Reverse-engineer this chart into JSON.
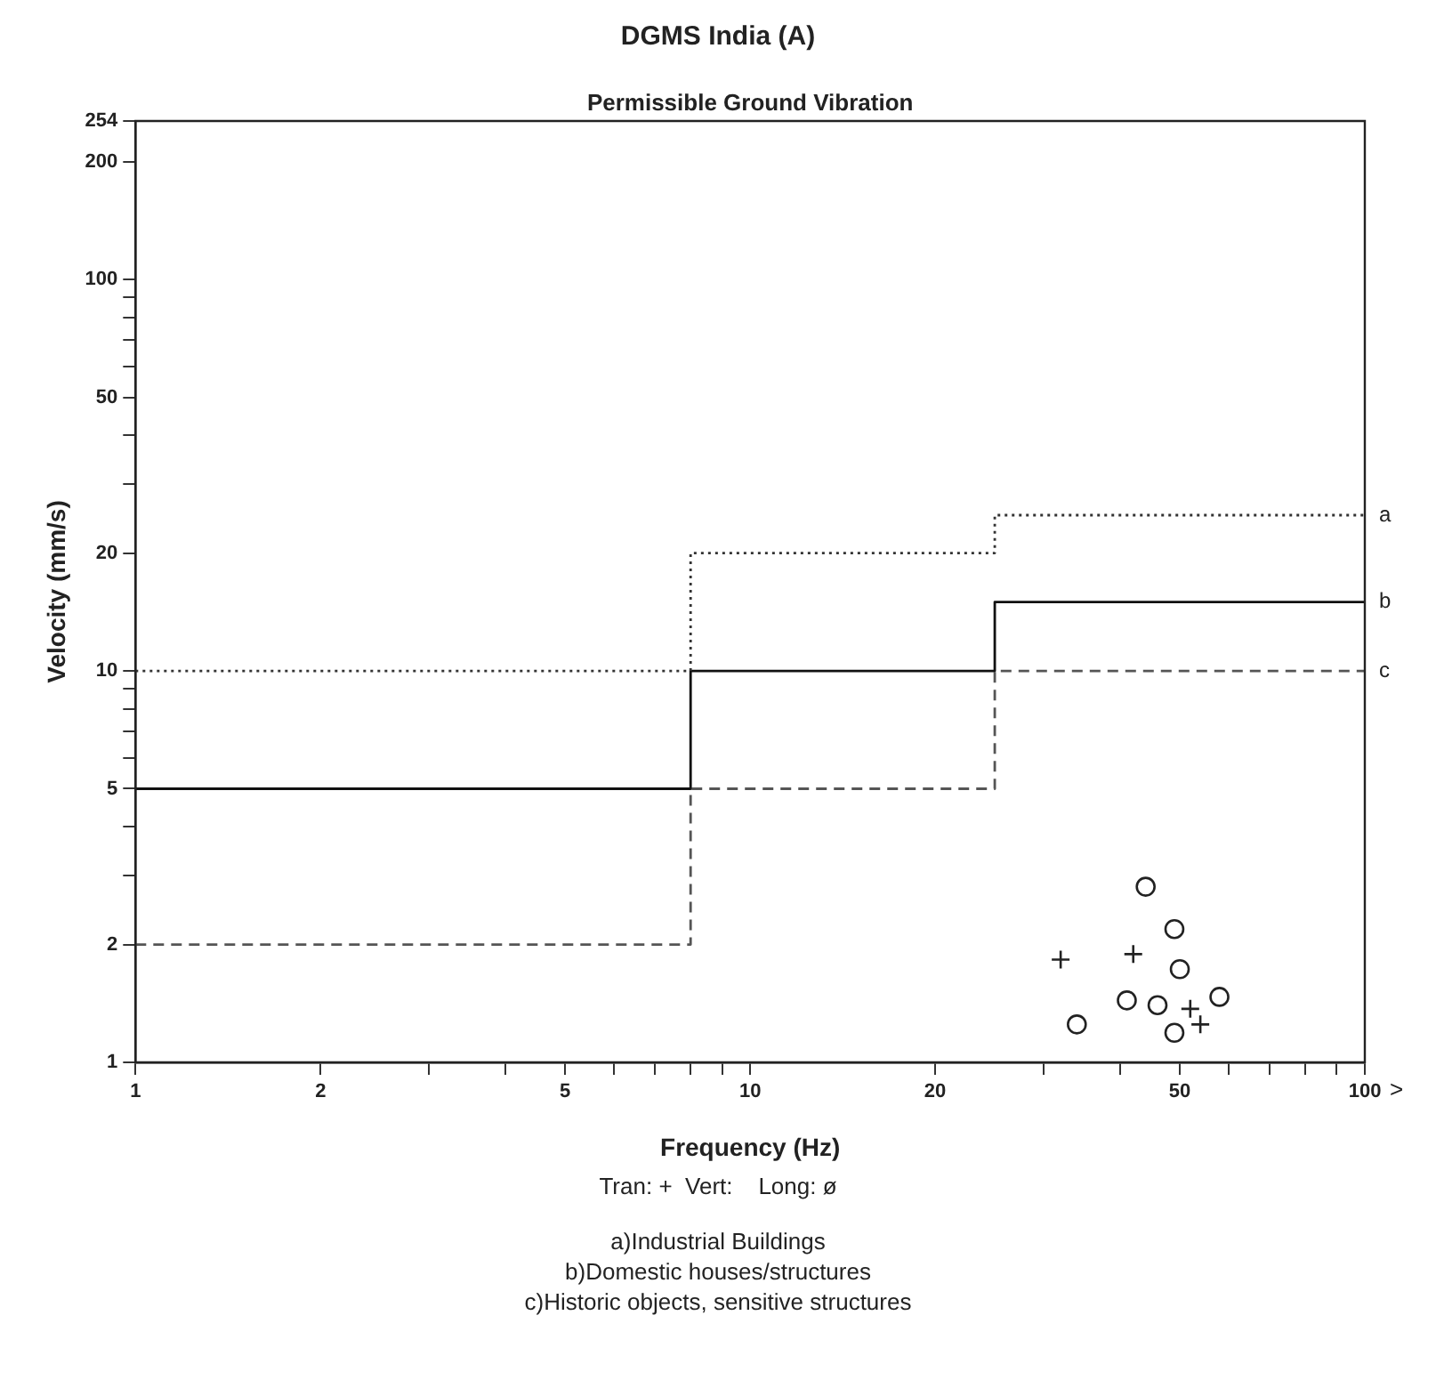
{
  "chart_data": {
    "type": "step",
    "title": "DGMS India (A)",
    "subtitle": "Permissible Ground Vibration",
    "xlabel": "Frequency (Hz)",
    "ylabel": "Velocity (mm/s)",
    "log": "xy",
    "grid": false,
    "legend": false,
    "xlim": [
      1,
      100
    ],
    "ylim": [
      1,
      254
    ],
    "xticks": [
      1,
      2,
      {
        "value": 3,
        "label": null
      },
      {
        "value": 4,
        "label": null
      },
      5,
      {
        "value": 6,
        "label": null
      },
      {
        "value": 7,
        "label": null
      },
      {
        "value": 8,
        "label": null
      },
      {
        "value": 9,
        "label": null
      },
      10,
      20,
      {
        "value": 30,
        "label": null
      },
      {
        "value": 40,
        "label": null
      },
      50,
      {
        "value": 60,
        "label": null
      },
      {
        "value": 70,
        "label": null
      },
      {
        "value": 80,
        "label": null
      },
      {
        "value": 90,
        "label": null
      },
      100
    ],
    "yticks": [
      1,
      2,
      {
        "value": 3,
        "label": null
      },
      {
        "value": 4,
        "label": null
      },
      5,
      {
        "value": 6,
        "label": null
      },
      {
        "value": 7,
        "label": null
      },
      {
        "value": 8,
        "label": null
      },
      {
        "value": 9,
        "label": null
      },
      10,
      20,
      {
        "value": 30,
        "label": null
      },
      {
        "value": 40,
        "label": null
      },
      50,
      {
        "value": 60,
        "label": null
      },
      {
        "value": 70,
        "label": null
      },
      {
        "value": 80,
        "label": null
      },
      {
        "value": 90,
        "label": null
      },
      100,
      200,
      254
    ],
    "series": [
      {
        "name": "a",
        "color": "#333333",
        "line_style": "dotted",
        "marker": "none",
        "x": [
          1,
          8,
          25,
          100
        ],
        "values": [
          10,
          20,
          25,
          25
        ]
      },
      {
        "name": "b",
        "color": "#111111",
        "line_style": "solid",
        "marker": "none",
        "x": [
          1,
          8,
          25,
          100
        ],
        "values": [
          5,
          10,
          15,
          15
        ]
      },
      {
        "name": "c",
        "color": "#555555",
        "line_style": "dashed",
        "marker": "none",
        "x": [
          1,
          8,
          25,
          100
        ],
        "values": [
          2,
          5,
          10,
          10
        ]
      },
      {
        "type": "scatter",
        "color": "#222222",
        "marker": "cross",
        "x": [
          32,
          42,
          52,
          54
        ],
        "values": [
          1.83,
          1.89,
          1.37,
          1.25
        ]
      },
      {
        "type": "scatter",
        "color": "#222222",
        "marker": "circle",
        "x": [
          44,
          49,
          50,
          41,
          46,
          58,
          34,
          49
        ],
        "values": [
          2.81,
          2.19,
          1.73,
          1.44,
          1.4,
          1.47,
          1.25,
          1.19
        ]
      }
    ],
    "annotations": [
      ">",
      "Tran: +  Vert:    Long: ø",
      "a)Industrial Buildings",
      "b)Domestic houses/structures",
      "c)Historic objects, sensitive structures"
    ]
  }
}
